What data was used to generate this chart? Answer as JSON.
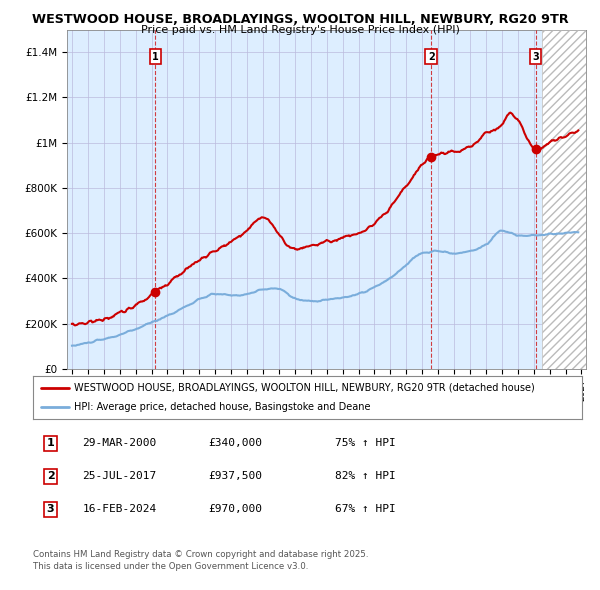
{
  "title1": "WESTWOOD HOUSE, BROADLAYINGS, WOOLTON HILL, NEWBURY, RG20 9TR",
  "title2": "Price paid vs. HM Land Registry's House Price Index (HPI)",
  "ylim": [
    0,
    1500000
  ],
  "yticks": [
    0,
    200000,
    400000,
    600000,
    800000,
    1000000,
    1200000,
    1400000
  ],
  "ytick_labels": [
    "£0",
    "£200K",
    "£400K",
    "£600K",
    "£800K",
    "£1M",
    "£1.2M",
    "£1.4M"
  ],
  "xlim_start": 1994.7,
  "xlim_end": 2027.3,
  "purchases": [
    {
      "date_num": 2000.24,
      "price": 340000,
      "label": "1",
      "date_str": "29-MAR-2000",
      "pct": "75%"
    },
    {
      "date_num": 2017.57,
      "price": 937500,
      "label": "2",
      "date_str": "25-JUL-2017",
      "pct": "82%"
    },
    {
      "date_num": 2024.12,
      "price": 970000,
      "label": "3",
      "date_str": "16-FEB-2024",
      "pct": "67%"
    }
  ],
  "legend_label_red": "WESTWOOD HOUSE, BROADLAYINGS, WOOLTON HILL, NEWBURY, RG20 9TR (detached house)",
  "legend_label_blue": "HPI: Average price, detached house, Basingstoke and Deane",
  "footer1": "Contains HM Land Registry data © Crown copyright and database right 2025.",
  "footer2": "This data is licensed under the Open Government Licence v3.0.",
  "red_color": "#cc0000",
  "blue_color": "#7aaddb",
  "bg_color": "#ddeeff",
  "future_start": 2024.5,
  "hatch_color": "#aaaaaa"
}
